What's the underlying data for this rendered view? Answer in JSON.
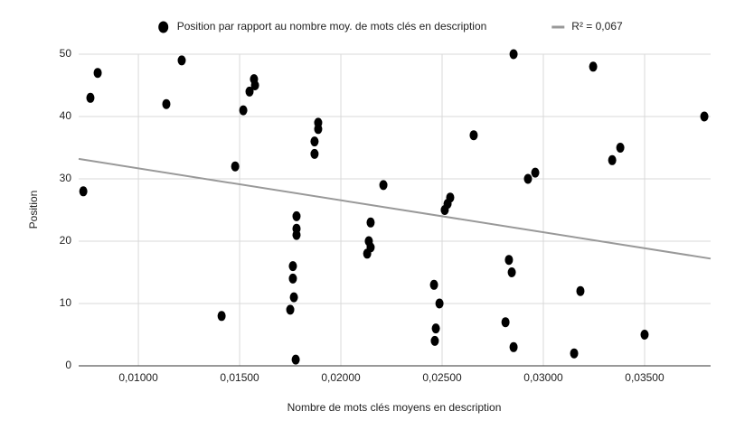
{
  "chart_data": {
    "type": "scatter",
    "x_label": "Nombre de mots clés moyens en description",
    "y_label": "Position",
    "xlim": [
      0.00705,
      0.03826
    ],
    "ylim": [
      0,
      50
    ],
    "xticks": [
      {
        "value": 0.01,
        "label": "0,01000"
      },
      {
        "value": 0.015,
        "label": "0,01500"
      },
      {
        "value": 0.02,
        "label": "0,02000"
      },
      {
        "value": 0.025,
        "label": "0,02500"
      },
      {
        "value": 0.03,
        "label": "0,03000"
      },
      {
        "value": 0.035,
        "label": "0,03500"
      }
    ],
    "yticks": [
      0,
      10,
      20,
      30,
      40,
      50
    ],
    "grid": true,
    "legend": "top",
    "series": [
      {
        "name": "Position par rapport au nombre moy. de mots clés en description",
        "color": "#000000",
        "x": [
          0.00728,
          0.00763,
          0.00799,
          0.01138,
          0.01214,
          0.01411,
          0.01478,
          0.01518,
          0.01549,
          0.01571,
          0.01576,
          0.0175,
          0.01763,
          0.01763,
          0.01768,
          0.01777,
          0.01781,
          0.01781,
          0.01781,
          0.0187,
          0.0187,
          0.01888,
          0.01888,
          0.0213,
          0.02138,
          0.02147,
          0.02147,
          0.0221,
          0.0246,
          0.02464,
          0.02469,
          0.02487,
          0.02513,
          0.02527,
          0.0254,
          0.02656,
          0.02813,
          0.0283,
          0.02844,
          0.02853,
          0.02853,
          0.02924,
          0.0296,
          0.03152,
          0.03183,
          0.03246,
          0.0334,
          0.0338,
          0.035,
          0.03795
        ],
        "values": [
          28,
          43,
          47,
          42,
          49,
          8,
          32,
          41,
          44,
          46,
          45,
          9,
          16,
          14,
          11,
          1,
          24,
          22,
          21,
          34,
          36,
          38,
          39,
          18,
          20,
          19,
          23,
          29,
          13,
          4,
          6,
          10,
          25,
          26,
          27,
          37,
          7,
          17,
          15,
          50,
          3,
          30,
          31,
          2,
          12,
          48,
          33,
          35,
          5,
          40
        ]
      },
      {
        "name": "R² = 0,067",
        "color": "#999999",
        "type": "line",
        "x": [
          0.00705,
          0.03826
        ],
        "values": [
          33.2,
          17.2
        ]
      }
    ]
  }
}
